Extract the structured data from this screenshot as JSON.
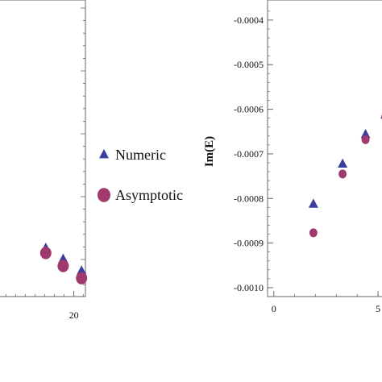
{
  "chart_data": [
    {
      "type": "scatter",
      "panel": "left",
      "xticks": [
        "20"
      ],
      "x_range": [
        12.2,
        21.2
      ],
      "y_range": [
        0,
        1
      ],
      "series": [
        {
          "name": "Numeric",
          "marker": "triangle",
          "points": [
            [
              17.1,
              0.163
            ],
            [
              18.9,
              0.126
            ],
            [
              20.8,
              0.086
            ]
          ]
        },
        {
          "name": "Asymptotic",
          "marker": "circle",
          "points": [
            [
              17.1,
              0.147
            ],
            [
              18.9,
              0.103
            ],
            [
              20.8,
              0.062
            ]
          ]
        }
      ]
    },
    {
      "type": "scatter",
      "panel": "right",
      "ylabel": "Im(E)",
      "xticks": [
        "0",
        "5"
      ],
      "yticks": [
        "-0.0004",
        "-0.0005",
        "-0.0006",
        "-0.0007",
        "-0.0008",
        "-0.0009",
        "-0.0010"
      ],
      "xlim": [
        -0.3,
        5.5
      ],
      "ylim": [
        -0.00102,
        -0.000355
      ],
      "series": [
        {
          "name": "Numeric",
          "marker": "triangle",
          "points": [
            [
              1.9,
              -0.000813
            ],
            [
              3.3,
              -0.000723
            ],
            [
              4.4,
              -0.000657
            ],
            [
              5.35,
              -0.000613
            ]
          ]
        },
        {
          "name": "Asymptotic",
          "marker": "circle",
          "points": [
            [
              1.9,
              -0.000877
            ],
            [
              3.3,
              -0.000745
            ],
            [
              4.4,
              -0.000668
            ],
            [
              5.35,
              -0.000617
            ]
          ]
        }
      ]
    }
  ],
  "legend": {
    "placement": "center",
    "items": [
      {
        "label": "Numeric",
        "marker": "triangle",
        "color": "#3a3f9c"
      },
      {
        "label": "Asymptotic",
        "marker": "circle",
        "color": "#a03a6e"
      }
    ]
  },
  "colors": {
    "numeric": "#3a3f9c",
    "asymptotic": "#a03a6e",
    "axis": "#666666"
  }
}
